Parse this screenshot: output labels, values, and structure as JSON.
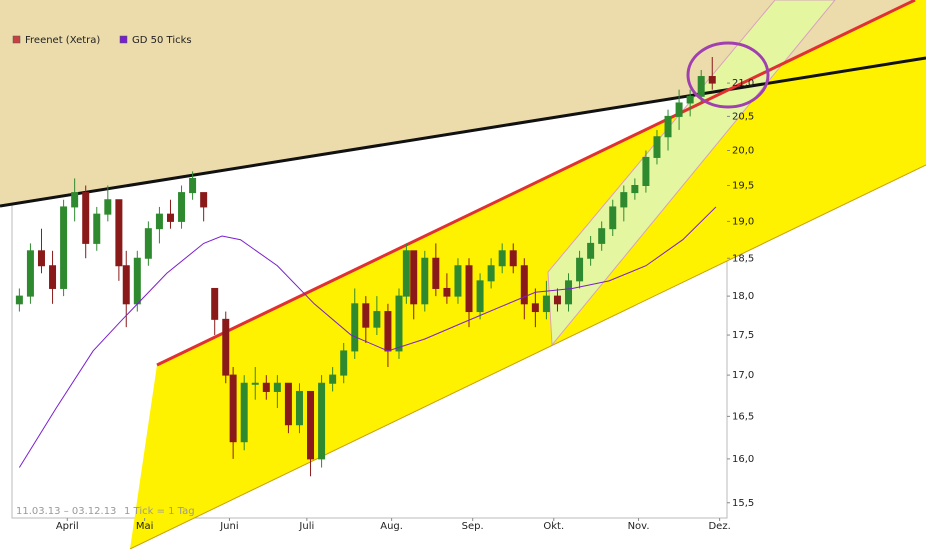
{
  "chart_data": {
    "type": "candlestick",
    "log_y": true,
    "up_color": "#2f8a2f",
    "down_color": "#8a1a1a",
    "date_range": "11.03.13 – 03.12.13",
    "tick_note": "1 Tick = 1 Tag",
    "series": [
      {
        "name": "Freenet (Xetra)",
        "color": "#c84040",
        "x": [
          0,
          3,
          6,
          9,
          12,
          15,
          18,
          21,
          24,
          27,
          29,
          32,
          35,
          38,
          41,
          44,
          47,
          50,
          53,
          56,
          58,
          61,
          64,
          67,
          70,
          73,
          76,
          79,
          82,
          85,
          88,
          91,
          94,
          97,
          100,
          103,
          105,
          107,
          110,
          113,
          116,
          119,
          122,
          125,
          128,
          131,
          134,
          137,
          140,
          143,
          146,
          149,
          152,
          155,
          158,
          161,
          164,
          167,
          170,
          173,
          176,
          179,
          182,
          185,
          188
        ],
        "open": [
          17.9,
          18.0,
          18.6,
          18.4,
          18.1,
          19.2,
          19.4,
          18.7,
          19.1,
          19.3,
          18.4,
          17.9,
          18.5,
          18.9,
          19.1,
          19.0,
          19.4,
          19.4,
          18.1,
          17.7,
          17.0,
          16.2,
          16.9,
          16.9,
          16.8,
          16.9,
          16.4,
          16.8,
          16.0,
          16.9,
          17.0,
          17.3,
          17.9,
          17.6,
          17.8,
          17.3,
          18.0,
          18.6,
          17.9,
          18.5,
          18.1,
          18.0,
          18.4,
          17.8,
          18.2,
          18.4,
          18.6,
          18.4,
          17.9,
          17.8,
          18.0,
          17.9,
          18.2,
          18.5,
          18.7,
          18.9,
          19.2,
          19.4,
          19.5,
          19.9,
          20.2,
          20.5,
          20.7,
          20.8,
          21.1
        ],
        "high": [
          18.1,
          18.7,
          18.9,
          18.6,
          19.3,
          19.6,
          19.5,
          19.2,
          19.5,
          19.3,
          18.6,
          18.6,
          19.0,
          19.2,
          19.3,
          19.5,
          19.7,
          19.4,
          18.1,
          17.8,
          17.1,
          17.0,
          17.1,
          17.0,
          17.0,
          16.9,
          16.9,
          16.8,
          17.0,
          17.1,
          17.4,
          18.1,
          18.0,
          18.0,
          17.9,
          18.1,
          18.7,
          18.6,
          18.6,
          18.7,
          18.3,
          18.5,
          18.5,
          18.3,
          18.5,
          18.7,
          18.7,
          18.5,
          18.1,
          18.2,
          18.1,
          18.3,
          18.6,
          18.8,
          19.0,
          19.3,
          19.5,
          19.6,
          20.0,
          20.3,
          20.6,
          20.9,
          20.9,
          21.2,
          21.4
        ],
        "low": [
          17.8,
          17.9,
          18.3,
          17.9,
          18.0,
          19.0,
          18.5,
          18.6,
          19.0,
          18.2,
          17.6,
          17.8,
          18.4,
          18.7,
          18.9,
          18.9,
          19.3,
          19.0,
          17.5,
          16.9,
          16.0,
          16.1,
          16.7,
          16.7,
          16.6,
          16.3,
          16.3,
          15.8,
          15.9,
          16.8,
          16.9,
          17.2,
          17.4,
          17.5,
          17.1,
          17.2,
          17.9,
          17.7,
          17.8,
          18.0,
          17.9,
          17.9,
          17.6,
          17.7,
          18.1,
          18.3,
          18.3,
          17.7,
          17.6,
          17.7,
          17.8,
          17.8,
          18.1,
          18.4,
          18.6,
          18.8,
          19.0,
          19.3,
          19.4,
          19.8,
          20.0,
          20.3,
          20.5,
          20.7,
          20.9
        ],
        "close": [
          18.0,
          18.6,
          18.4,
          18.1,
          19.2,
          19.4,
          18.7,
          19.1,
          19.3,
          18.4,
          17.9,
          18.5,
          18.9,
          19.1,
          19.0,
          19.4,
          19.6,
          19.2,
          17.7,
          17.0,
          16.2,
          16.9,
          16.9,
          16.8,
          16.9,
          16.4,
          16.8,
          16.0,
          16.9,
          17.0,
          17.3,
          17.9,
          17.6,
          17.8,
          17.3,
          18.0,
          18.6,
          17.9,
          18.5,
          18.1,
          18.0,
          18.4,
          17.8,
          18.2,
          18.4,
          18.6,
          18.4,
          17.9,
          17.8,
          18.0,
          17.9,
          18.2,
          18.5,
          18.7,
          18.9,
          19.2,
          19.4,
          19.5,
          19.9,
          20.2,
          20.5,
          20.7,
          20.8,
          21.1,
          21.0
        ]
      },
      {
        "name": "GD 50 Ticks",
        "color": "#7a1fd0",
        "x": [
          0,
          10,
          20,
          28,
          40,
          50,
          55,
          60,
          70,
          80,
          90,
          100,
          110,
          120,
          130,
          140,
          150,
          160,
          170,
          180,
          189
        ],
        "values": [
          15.9,
          16.6,
          17.3,
          17.7,
          18.3,
          18.7,
          18.8,
          18.75,
          18.4,
          17.9,
          17.5,
          17.3,
          17.45,
          17.65,
          17.85,
          18.05,
          18.1,
          18.2,
          18.4,
          18.75,
          19.2
        ]
      }
    ],
    "xlim": [
      -2,
      192
    ],
    "xticks": [
      {
        "value": 13,
        "label": "April"
      },
      {
        "value": 34,
        "label": "Mai"
      },
      {
        "value": 57,
        "label": "Juni"
      },
      {
        "value": 78,
        "label": "Juli"
      },
      {
        "value": 101,
        "label": "Aug."
      },
      {
        "value": 123,
        "label": "Sep."
      },
      {
        "value": 145,
        "label": "Okt."
      },
      {
        "value": 168,
        "label": "Nov."
      },
      {
        "value": 190,
        "label": "Dez."
      }
    ],
    "ylim": [
      15.33,
      21.54
    ],
    "yticks": [
      {
        "value": 15.5,
        "label": "15,5"
      },
      {
        "value": 16,
        "label": "16,0"
      },
      {
        "value": 16.5,
        "label": "16,5"
      },
      {
        "value": 17,
        "label": "17,0"
      },
      {
        "value": 17.5,
        "label": "17,5"
      },
      {
        "value": 18,
        "label": "18,0"
      },
      {
        "value": 18.5,
        "label": "18,5"
      },
      {
        "value": 19,
        "label": "19,0"
      },
      {
        "value": 19.5,
        "label": "19,5"
      },
      {
        "value": 20,
        "label": "20,0"
      },
      {
        "value": 20.5,
        "label": "20,5"
      },
      {
        "value": 21,
        "label": "21,0"
      }
    ]
  }
}
